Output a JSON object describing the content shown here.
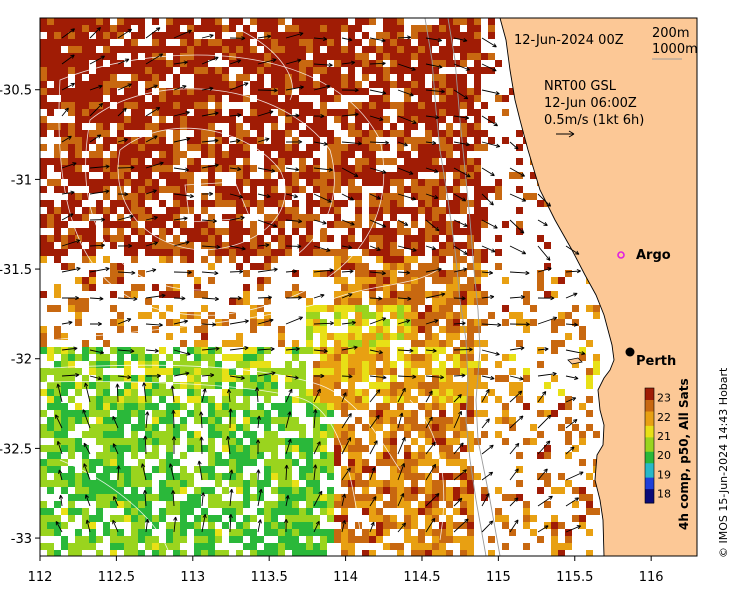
{
  "map": {
    "date_label": "12-Jun-2024 00Z",
    "bathymetry_legend": [
      "200m",
      "1000m"
    ],
    "current_block": {
      "product": "NRT00 GSL",
      "time": "12-Jun 06:00Z",
      "scale": "0.5m/s (1kt 6h)"
    },
    "places": [
      {
        "name": "Perth",
        "lon": 115.86,
        "lat": -31.95,
        "marker": "filled-dot"
      },
      {
        "name": "Argo",
        "lon": 115.8,
        "lat": -31.43,
        "marker": "open-circle-magenta"
      }
    ],
    "x_axis": {
      "ticks": [
        112,
        112.5,
        113,
        113.5,
        114,
        114.5,
        115,
        115.5,
        116
      ],
      "range": [
        112,
        116.3
      ]
    },
    "y_axis": {
      "ticks": [
        -30.5,
        -31,
        -31.5,
        -32,
        -32.5,
        -33
      ],
      "range": [
        -33.1,
        -30.1
      ]
    },
    "colorbar": {
      "title": "4h comp, p50, All Sats",
      "ticks": [
        18,
        19,
        20,
        21,
        22,
        23
      ],
      "range": [
        17.5,
        23.5
      ],
      "colors": [
        "#0a0a78",
        "#1f3fd8",
        "#28b8c8",
        "#2ab83a",
        "#9ad41e",
        "#e8e016",
        "#e8a012",
        "#c86810",
        "#a01c05"
      ]
    },
    "credit": "© IMOS 15-Jun-2024 14:43 Hobart",
    "colors": {
      "land": "#fcc896",
      "no_data": "#ffffff",
      "coast": "#000000",
      "isobath": "#9a9a9a",
      "contour": "#ffffff"
    }
  }
}
